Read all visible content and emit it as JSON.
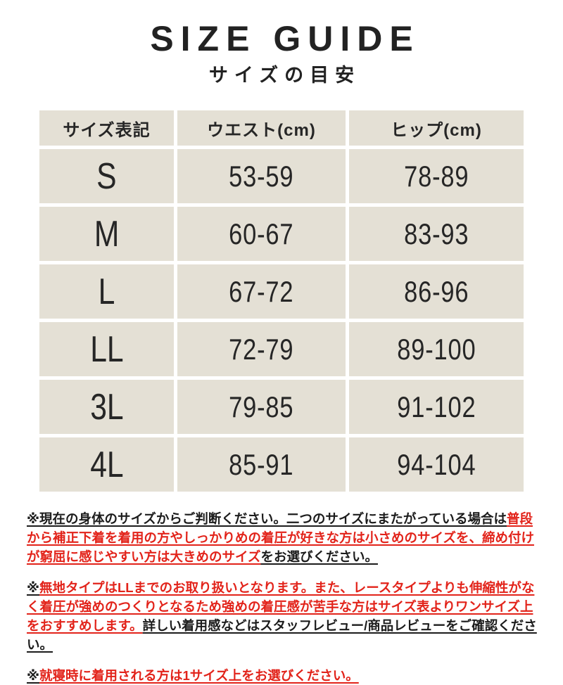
{
  "title": "SIZE GUIDE",
  "subtitle": "サイズの目安",
  "colors": {
    "accent_red": "#e2231a",
    "table_cell_bg": "#e4e0d5",
    "text_dark": "#222222"
  },
  "size_table": {
    "headers": [
      "サイズ表記",
      "ウエスト(cm)",
      "ヒップ(cm)"
    ],
    "rows": [
      [
        "S",
        "53-59",
        "78-89"
      ],
      [
        "M",
        "60-67",
        "83-93"
      ],
      [
        "L",
        "67-72",
        "86-96"
      ],
      [
        "LL",
        "72-79",
        "89-100"
      ],
      [
        "3L",
        "79-85",
        "91-102"
      ],
      [
        "4L",
        "85-91",
        "94-104"
      ]
    ]
  },
  "notes": [
    {
      "segments": [
        {
          "text": "※現在の身体のサイズからご判断ください。二つのサイズにまたがっている場合は",
          "red": false
        },
        {
          "text": "普段から補正下着を着用の方やしっかりめの着圧が好きな方は小さめのサイズを、締め付けが窮屈に感じやすい方は大きめのサイズ",
          "red": true
        },
        {
          "text": "をお選びください。",
          "red": false
        }
      ]
    },
    {
      "segments": [
        {
          "text": "※",
          "red": false
        },
        {
          "text": "無地タイプはLLまでのお取り扱いとなります。また、レースタイプよりも伸縮性がなく着圧が強めのつくりとなるため強めの着圧感が苦手な方はサイズ表よりワンサイズ上をおすすめします。",
          "red": true
        },
        {
          "text": "詳しい着用感などはスタッフレビュー/商品レビューをご確認ください。",
          "red": false
        }
      ]
    },
    {
      "segments": [
        {
          "text": "※",
          "red": false
        },
        {
          "text": "就寝時に着用される方は1サイズ上をお選びください。",
          "red": true
        }
      ]
    }
  ]
}
